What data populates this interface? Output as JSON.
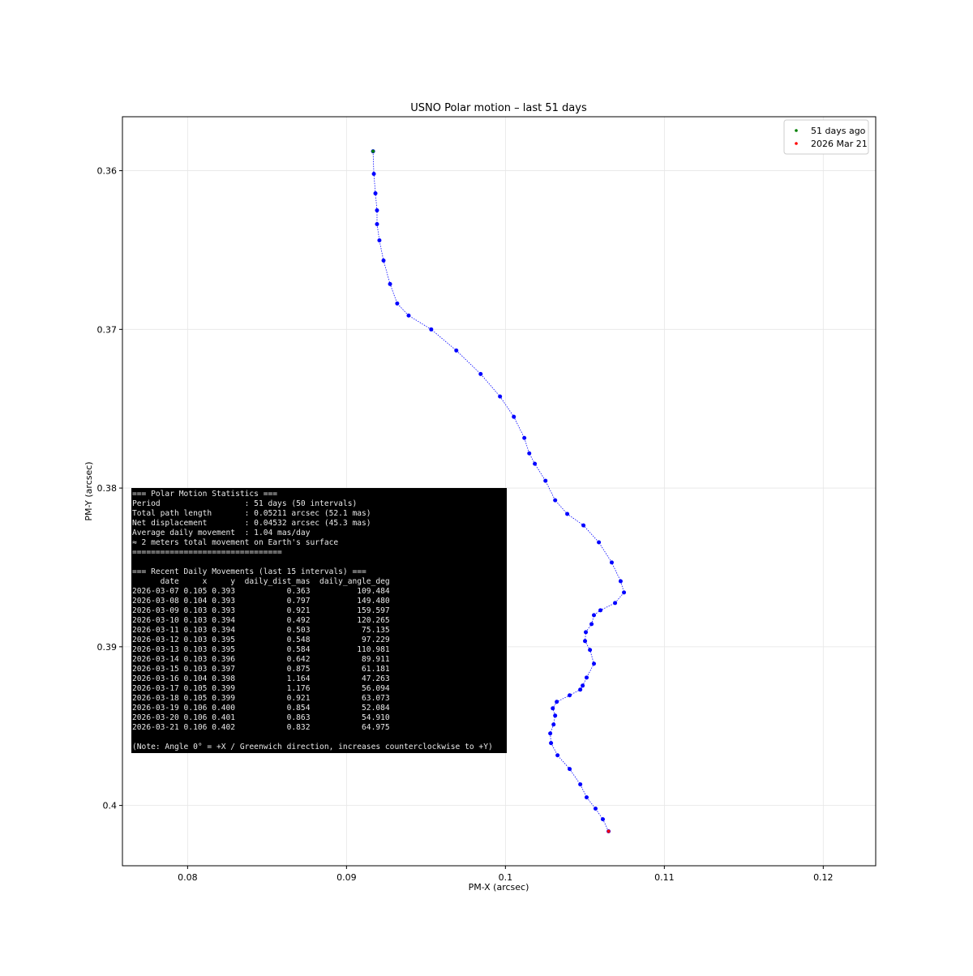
{
  "chart_data": {
    "type": "scatter",
    "title": "USNO Polar motion – last 51  days",
    "x_label": "PM-X (arcsec)",
    "y_label": "PM-Y (arcsec)",
    "xlim": [
      0.0759,
      0.1233
    ],
    "ylim": [
      0.4038,
      0.3566
    ],
    "xticks": [
      0.08,
      0.09,
      0.1,
      0.11,
      0.12
    ],
    "yticks": [
      0.36,
      0.37,
      0.38,
      0.39,
      0.4
    ],
    "grid": true,
    "legend": "upper right",
    "series": [
      {
        "color": "#0000ff",
        "x": [
          0.09167,
          0.09172,
          0.09182,
          0.09192,
          0.09192,
          0.09207,
          0.09233,
          0.09274,
          0.09319,
          0.09391,
          0.09533,
          0.09691,
          0.09844,
          0.09966,
          0.10053,
          0.10119,
          0.1015,
          0.10185,
          0.10252,
          0.10313,
          0.10389,
          0.10491,
          0.10588,
          0.10669,
          0.10725,
          0.10746,
          0.1069,
          0.10598,
          0.10557,
          0.10542,
          0.10506,
          0.10501,
          0.10532,
          0.10557,
          0.10511,
          0.10486,
          0.10471,
          0.10404,
          0.10323,
          0.10298,
          0.10313,
          0.10303,
          0.10282,
          0.10287,
          0.10328,
          0.10404,
          0.10471,
          0.10511,
          0.10567,
          0.10613,
          0.10649
        ],
        "y": [
          0.35878,
          0.3602,
          0.36143,
          0.3625,
          0.36337,
          0.36439,
          0.36566,
          0.36714,
          0.36837,
          0.36913,
          0.37,
          0.37133,
          0.37281,
          0.37423,
          0.37551,
          0.37684,
          0.37781,
          0.37847,
          0.37954,
          0.38077,
          0.38163,
          0.38235,
          0.38342,
          0.38469,
          0.38587,
          0.38658,
          0.38724,
          0.3877,
          0.38801,
          0.38857,
          0.38908,
          0.38964,
          0.3902,
          0.39107,
          0.39194,
          0.39245,
          0.3927,
          0.39306,
          0.39347,
          0.39388,
          0.39434,
          0.3949,
          0.39546,
          0.39607,
          0.39684,
          0.3977,
          0.39867,
          0.39949,
          0.4002,
          0.40087,
          0.40163
        ]
      },
      {
        "name": "51 days ago",
        "color": "#008000",
        "x": [
          0.09167
        ],
        "y": [
          0.35878
        ]
      },
      {
        "name": "2026 Mar 21",
        "color": "#ff0000",
        "x": [
          0.10649
        ],
        "y": [
          0.40163
        ]
      }
    ],
    "stats_box": {
      "summary": [
        "=== Polar Motion Statistics ===",
        "Period                  : 51 days (50 intervals)",
        "Total path length       : 0.05211 arcsec (52.1 mas)",
        "Net displacement        : 0.04532 arcsec (45.3 mas)",
        "Average daily movement  : 1.04 mas/day",
        "≈ 2 meters total movement on Earth's surface",
        "================================"
      ],
      "recent_title": "=== Recent Daily Movements (last 15 intervals) ===",
      "columns": "      date     x     y  daily_dist_mas  daily_angle_deg",
      "rows": [
        "2026-03-07 0.105 0.393           0.363          109.484",
        "2026-03-08 0.104 0.393           0.797          149.480",
        "2026-03-09 0.103 0.393           0.921          159.597",
        "2026-03-10 0.103 0.394           0.492          120.265",
        "2026-03-11 0.103 0.394           0.503           75.135",
        "2026-03-12 0.103 0.395           0.548           97.229",
        "2026-03-13 0.103 0.395           0.584          110.981",
        "2026-03-14 0.103 0.396           0.642           89.911",
        "2026-03-15 0.103 0.397           0.875           61.181",
        "2026-03-16 0.104 0.398           1.164           47.263",
        "2026-03-17 0.105 0.399           1.176           56.094",
        "2026-03-18 0.105 0.399           0.921           63.073",
        "2026-03-19 0.106 0.400           0.854           52.084",
        "2026-03-20 0.106 0.401           0.863           54.910",
        "2026-03-21 0.106 0.402           0.832           64.975"
      ],
      "note": "(Note: Angle 0° = +X / Greenwich direction, increases counterclockwise to +Y)"
    }
  }
}
